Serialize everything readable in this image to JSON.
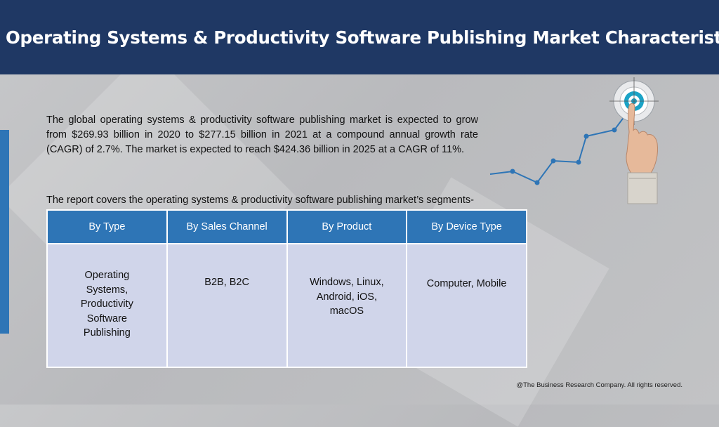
{
  "header": {
    "title": "Operating Systems & Productivity Software Publishing Market Characteristics:"
  },
  "intro_text": "The global operating systems & productivity software publishing market is expected to grow from $269.93 billion in 2020 to $277.15 billion in 2021 at a compound annual growth rate (CAGR) of 2.7%. The market is expected to reach $424.36 billion in 2025 at a CAGR of 11%.",
  "segments_lead": "The report covers the operating systems & productivity software publishing market’s segments-",
  "table": {
    "headers": [
      "By Type",
      "By Sales Channel",
      "By Product",
      "By Device Type"
    ],
    "cells": [
      "Operating Systems, Productivity Software Publishing",
      "B2B, B2C",
      "Windows, Linux, Android, iOS, macOS",
      "Computer, Mobile"
    ]
  },
  "footer": "@The Business Research Company. All rights reserved.",
  "colors": {
    "header_bg": "#1f3864",
    "accent_blue": "#2e75b6",
    "cell_bg": "#d0d5ea"
  },
  "graphic": {
    "icon": "target-finger-growth-icon"
  }
}
